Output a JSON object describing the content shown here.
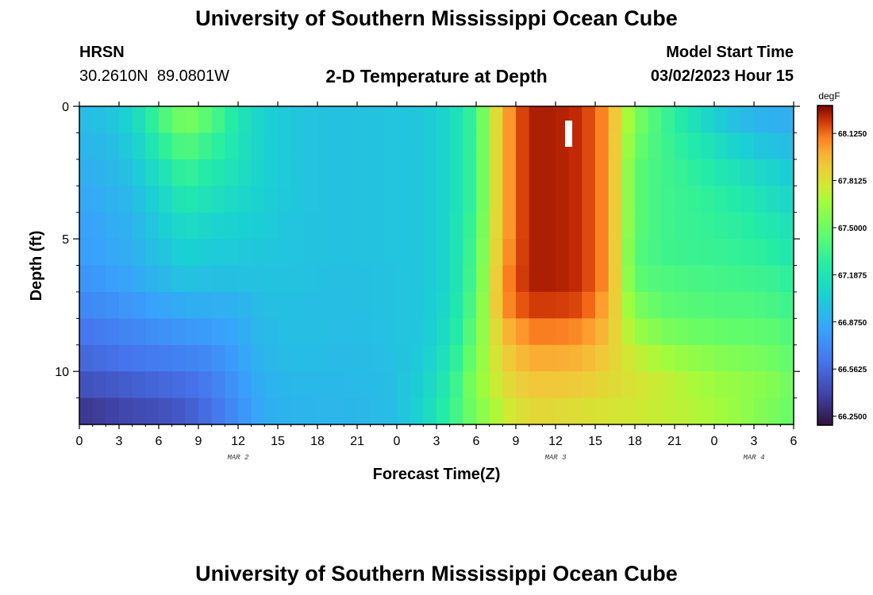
{
  "page": {
    "top_title": "University of Southern Mississippi Ocean Cube",
    "bottom_title": "University of Southern Mississippi Ocean Cube",
    "station": {
      "name": "HRSN",
      "coords": "30.2610N  89.0801W"
    },
    "model_start": {
      "label": "Model Start Time",
      "value": "03/02/2023 Hour 15"
    }
  },
  "chart_data": {
    "type": "heatmap",
    "title": "2-D Temperature at Depth",
    "xlabel": "Forecast Time(Z)",
    "ylabel": "Depth (ft)",
    "xlim": [
      0,
      54
    ],
    "ylim": [
      0,
      12
    ],
    "y_inverted": true,
    "x_ticks": [
      {
        "x": 0,
        "label": "0"
      },
      {
        "x": 3,
        "label": "3"
      },
      {
        "x": 6,
        "label": "6"
      },
      {
        "x": 9,
        "label": "9"
      },
      {
        "x": 12,
        "label": "12"
      },
      {
        "x": 15,
        "label": "15"
      },
      {
        "x": 18,
        "label": "18"
      },
      {
        "x": 21,
        "label": "21"
      },
      {
        "x": 24,
        "label": "0"
      },
      {
        "x": 27,
        "label": "3"
      },
      {
        "x": 30,
        "label": "6"
      },
      {
        "x": 33,
        "label": "9"
      },
      {
        "x": 36,
        "label": "12"
      },
      {
        "x": 39,
        "label": "15"
      },
      {
        "x": 42,
        "label": "18"
      },
      {
        "x": 45,
        "label": "21"
      },
      {
        "x": 48,
        "label": "0"
      },
      {
        "x": 51,
        "label": "3"
      },
      {
        "x": 54,
        "label": "6"
      }
    ],
    "date_labels": [
      {
        "x": 12,
        "label": "MAR 2"
      },
      {
        "x": 36,
        "label": "MAR 3"
      },
      {
        "x": 51,
        "label": "MAR 4"
      }
    ],
    "y_ticks": [
      {
        "y": 0,
        "label": "0"
      },
      {
        "y": 5,
        "label": "5"
      },
      {
        "y": 10,
        "label": "10"
      }
    ],
    "depths": [
      0.5,
      1.5,
      2.5,
      3.5,
      4.5,
      5.5,
      6.5,
      7.5,
      8.5,
      9.5,
      10.5,
      11.5
    ],
    "times": [
      0,
      2,
      4,
      6,
      8,
      10,
      12,
      14,
      16,
      18,
      20,
      22,
      24,
      26,
      28,
      30,
      32,
      34,
      36,
      38,
      40,
      42,
      44,
      46,
      48,
      50,
      52,
      54
    ],
    "values": [
      [
        66.95,
        66.97,
        67.08,
        67.35,
        67.55,
        67.4,
        67.2,
        67.05,
        67.0,
        66.98,
        66.97,
        66.98,
        66.99,
        67.0,
        67.1,
        67.35,
        68.0,
        68.25,
        68.25,
        68.22,
        68.05,
        67.55,
        67.35,
        67.2,
        67.05,
        66.95,
        66.9,
        66.88
      ],
      [
        66.92,
        66.94,
        67.03,
        67.25,
        67.42,
        67.3,
        67.18,
        67.05,
        67.0,
        66.98,
        66.97,
        66.98,
        66.99,
        67.0,
        67.1,
        67.35,
        68.0,
        68.25,
        68.25,
        68.22,
        68.05,
        67.5,
        67.35,
        67.25,
        67.15,
        67.05,
        66.98,
        66.95
      ],
      [
        66.88,
        66.91,
        66.98,
        67.15,
        67.32,
        67.22,
        67.15,
        67.05,
        67.0,
        66.98,
        66.97,
        66.98,
        66.99,
        67.0,
        67.1,
        67.35,
        68.0,
        68.25,
        68.25,
        68.22,
        68.05,
        67.45,
        67.35,
        67.3,
        67.22,
        67.15,
        67.08,
        67.02
      ],
      [
        66.85,
        66.88,
        66.94,
        67.07,
        67.22,
        67.15,
        67.1,
        67.04,
        67.0,
        66.98,
        66.97,
        66.98,
        66.99,
        67.0,
        67.1,
        67.35,
        68.0,
        68.25,
        68.25,
        68.22,
        68.05,
        67.45,
        67.35,
        67.32,
        67.28,
        67.22,
        67.15,
        67.08
      ],
      [
        66.82,
        66.86,
        66.91,
        67.02,
        67.12,
        67.08,
        67.05,
        67.02,
        66.99,
        66.98,
        66.97,
        66.98,
        66.99,
        67.0,
        67.1,
        67.38,
        68.0,
        68.25,
        68.25,
        68.22,
        68.05,
        67.45,
        67.35,
        67.32,
        67.3,
        67.27,
        67.22,
        67.15
      ],
      [
        66.8,
        66.84,
        66.89,
        66.98,
        67.05,
        67.02,
        67.01,
        67.0,
        66.99,
        66.98,
        66.97,
        66.98,
        66.99,
        67.0,
        67.1,
        67.4,
        68.02,
        68.25,
        68.25,
        68.22,
        68.05,
        67.42,
        67.35,
        67.33,
        67.32,
        67.3,
        67.27,
        67.2
      ],
      [
        66.76,
        66.8,
        66.85,
        66.92,
        66.98,
        66.96,
        66.97,
        66.98,
        66.98,
        66.97,
        66.96,
        66.97,
        66.98,
        67.0,
        67.1,
        67.42,
        68.05,
        68.25,
        68.25,
        68.22,
        68.05,
        67.45,
        67.4,
        67.38,
        67.36,
        67.35,
        67.33,
        67.27
      ],
      [
        66.7,
        66.73,
        66.78,
        66.84,
        66.88,
        66.88,
        66.9,
        66.96,
        66.97,
        66.96,
        66.96,
        66.97,
        66.98,
        67.0,
        67.12,
        67.45,
        68.05,
        68.2,
        68.2,
        68.18,
        68.0,
        67.55,
        67.45,
        67.42,
        67.4,
        67.4,
        67.38,
        67.33
      ],
      [
        66.62,
        66.65,
        66.7,
        66.74,
        66.78,
        66.8,
        66.86,
        66.94,
        66.96,
        66.96,
        66.95,
        66.96,
        66.98,
        67.0,
        67.15,
        67.5,
        67.95,
        68.1,
        68.1,
        68.08,
        67.95,
        67.65,
        67.55,
        67.5,
        67.48,
        67.46,
        67.45,
        67.4
      ],
      [
        66.55,
        66.58,
        66.62,
        66.65,
        66.68,
        66.72,
        66.82,
        66.92,
        66.95,
        66.95,
        66.94,
        66.95,
        66.97,
        67.02,
        67.2,
        67.55,
        67.88,
        68.0,
        68.0,
        67.98,
        67.9,
        67.75,
        67.68,
        67.62,
        67.58,
        67.55,
        67.52,
        67.45
      ],
      [
        66.45,
        66.48,
        66.52,
        66.55,
        66.58,
        66.65,
        66.78,
        66.9,
        66.93,
        66.93,
        66.93,
        66.94,
        66.97,
        67.05,
        67.25,
        67.6,
        67.82,
        67.92,
        67.92,
        67.9,
        67.85,
        67.8,
        67.75,
        67.7,
        67.65,
        67.62,
        67.58,
        67.5
      ],
      [
        66.35,
        66.38,
        66.42,
        66.45,
        66.5,
        66.6,
        66.74,
        66.88,
        66.91,
        66.92,
        66.92,
        66.93,
        66.96,
        67.08,
        67.3,
        67.55,
        67.75,
        67.85,
        67.85,
        67.82,
        67.8,
        67.78,
        67.75,
        67.72,
        67.68,
        67.62,
        67.55,
        67.48
      ]
    ],
    "colorbar": {
      "unit": "degF",
      "min": 66.19,
      "max": 68.31,
      "ticks": [
        {
          "v": 66.25,
          "label": "66.2500"
        },
        {
          "v": 66.5625,
          "label": "66.5625"
        },
        {
          "v": 66.875,
          "label": "66.8750"
        },
        {
          "v": 67.1875,
          "label": "67.1875"
        },
        {
          "v": 67.5,
          "label": "67.5000"
        },
        {
          "v": 67.8125,
          "label": "67.8125"
        },
        {
          "v": 68.125,
          "label": "68.1250"
        }
      ]
    }
  }
}
